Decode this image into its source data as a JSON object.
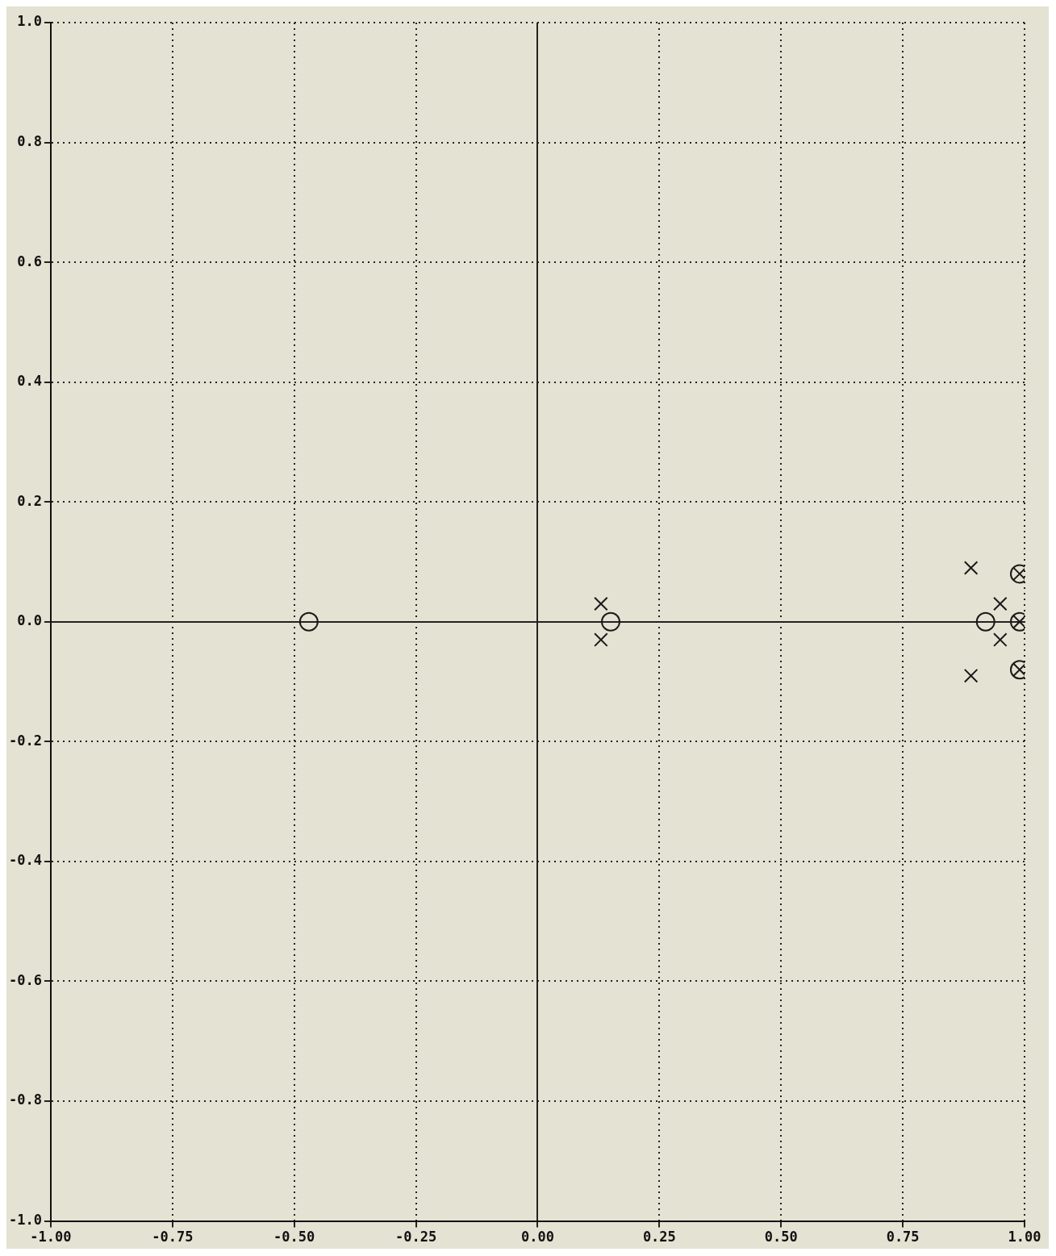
{
  "chart_data": {
    "type": "scatter",
    "xlim": [
      -1,
      1
    ],
    "ylim": [
      -1,
      1
    ],
    "xticks": [
      {
        "value": -1,
        "label": "-1.00"
      },
      {
        "value": -0.75,
        "label": "-0.75"
      },
      {
        "value": -0.5,
        "label": "-0.50"
      },
      {
        "value": -0.25,
        "label": "-0.25"
      },
      {
        "value": 0,
        "label": "0.00"
      },
      {
        "value": 0.25,
        "label": "0.25"
      },
      {
        "value": 0.5,
        "label": "0.50"
      },
      {
        "value": 0.75,
        "label": "0.75"
      },
      {
        "value": 1,
        "label": "1.00"
      }
    ],
    "yticks": [
      {
        "value": -1,
        "label": "-1.0"
      },
      {
        "value": -0.8,
        "label": "-0.8"
      },
      {
        "value": -0.6,
        "label": "-0.6"
      },
      {
        "value": -0.4,
        "label": "-0.4"
      },
      {
        "value": -0.2,
        "label": "-0.2"
      },
      {
        "value": 0,
        "label": "0.0"
      },
      {
        "value": 0.2,
        "label": "0.2"
      },
      {
        "value": 0.4,
        "label": "0.4"
      },
      {
        "value": 0.6,
        "label": "0.6"
      },
      {
        "value": 0.8,
        "label": "0.8"
      },
      {
        "value": 1,
        "label": "1.0"
      }
    ],
    "grid": true,
    "legend": false,
    "line_style": "dotted",
    "series": [
      {
        "color": "#1a1a1a",
        "marker": "circle",
        "x": [
          -0.47,
          0.15,
          0.92,
          0.99,
          0.99,
          0.99
        ],
        "values": [
          0,
          0,
          0,
          0.08,
          0,
          -0.08
        ]
      },
      {
        "color": "#1a1a1a",
        "marker": "cross",
        "x": [
          0.13,
          0.13,
          0.89,
          0.89,
          0.95,
          0.95,
          0.99,
          0.99,
          0.99
        ],
        "values": [
          0.03,
          -0.03,
          0.09,
          -0.09,
          0.03,
          -0.03,
          0.08,
          0,
          -0.08
        ]
      }
    ]
  }
}
